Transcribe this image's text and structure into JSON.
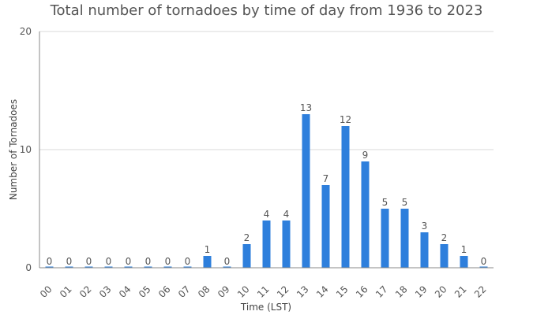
{
  "chart_data": {
    "type": "bar",
    "title": "Total number of tornadoes by time of day from 1936 to 2023",
    "xlabel": "Time (LST)",
    "ylabel": "Number of Tornadoes",
    "categories": [
      "00",
      "01",
      "02",
      "03",
      "04",
      "05",
      "06",
      "07",
      "08",
      "09",
      "10",
      "11",
      "12",
      "13",
      "14",
      "15",
      "16",
      "17",
      "18",
      "19",
      "20",
      "21",
      "22"
    ],
    "values": [
      0,
      0,
      0,
      0,
      0,
      0,
      0,
      0,
      1,
      0,
      2,
      4,
      4,
      13,
      7,
      12,
      9,
      5,
      5,
      3,
      2,
      1,
      0
    ],
    "ylim": [
      0,
      20
    ],
    "yticks": [
      0,
      10,
      20
    ],
    "grid": true,
    "legend": "none",
    "colors": {
      "bar": "#2e7fdc",
      "grid": "#d8d8d8",
      "axis": "#888888",
      "text": "#555555"
    }
  }
}
